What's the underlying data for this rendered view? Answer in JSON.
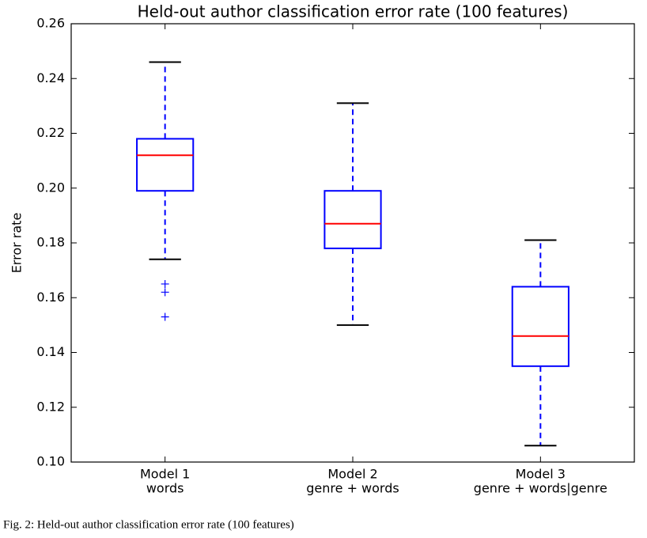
{
  "chart_data": {
    "type": "box",
    "title": "Held-out author classification error rate (100 features)",
    "y_label": "Error rate",
    "categories": [
      [
        "Model 1",
        "words"
      ],
      [
        "Model 2",
        "genre + words"
      ],
      [
        "Model 3",
        "genre + words|genre"
      ]
    ],
    "boxes": [
      {
        "whislo": 0.174,
        "q1": 0.199,
        "med": 0.212,
        "q3": 0.218,
        "whishi": 0.246,
        "fliers": [
          0.165,
          0.162,
          0.153
        ]
      },
      {
        "whislo": 0.15,
        "q1": 0.178,
        "med": 0.187,
        "q3": 0.199,
        "whishi": 0.231,
        "fliers": []
      },
      {
        "whislo": 0.106,
        "q1": 0.135,
        "med": 0.146,
        "q3": 0.164,
        "whishi": 0.181,
        "fliers": []
      }
    ],
    "box_color": "#0000ff",
    "median_color": "#ff0000",
    "cap_color": "#000000",
    "ylim": [
      0.1,
      0.26
    ],
    "yticks": [
      {
        "value": 0.1,
        "label": "0.10"
      },
      {
        "value": 0.12,
        "label": "0.12"
      },
      {
        "value": 0.14,
        "label": "0.14"
      },
      {
        "value": 0.16,
        "label": "0.16"
      },
      {
        "value": 0.18,
        "label": "0.18"
      },
      {
        "value": 0.2,
        "label": "0.20"
      },
      {
        "value": 0.22,
        "label": "0.22"
      },
      {
        "value": 0.24,
        "label": "0.24"
      },
      {
        "value": 0.26,
        "label": "0.26"
      }
    ],
    "grid": false,
    "caption": "Fig. 2: Held-out author classification error rate (100 features)"
  }
}
